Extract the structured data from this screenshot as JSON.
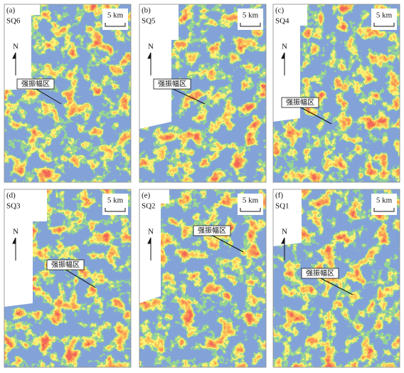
{
  "panels": [
    {
      "label": "(a)",
      "sequence": "SQ6",
      "scale": "5 km",
      "north": "N",
      "annotation": "强振幅区"
    },
    {
      "label": "(b)",
      "sequence": "SQ5",
      "scale": "5 km",
      "north": "N",
      "annotation": "强振幅区"
    },
    {
      "label": "(c)",
      "sequence": "SQ4",
      "scale": "5 km",
      "north": "N",
      "annotation": "强振幅区"
    },
    {
      "label": "(d)",
      "sequence": "SQ3",
      "scale": "5 km",
      "north": "N",
      "annotation": "强振幅区"
    },
    {
      "label": "(e)",
      "sequence": "SQ2",
      "scale": "5 km",
      "north": "N",
      "annotation": "强振幅区"
    },
    {
      "label": "(f)",
      "sequence": "SQ1",
      "scale": "5 km",
      "north": "N",
      "annotation": "强振幅区"
    }
  ]
}
